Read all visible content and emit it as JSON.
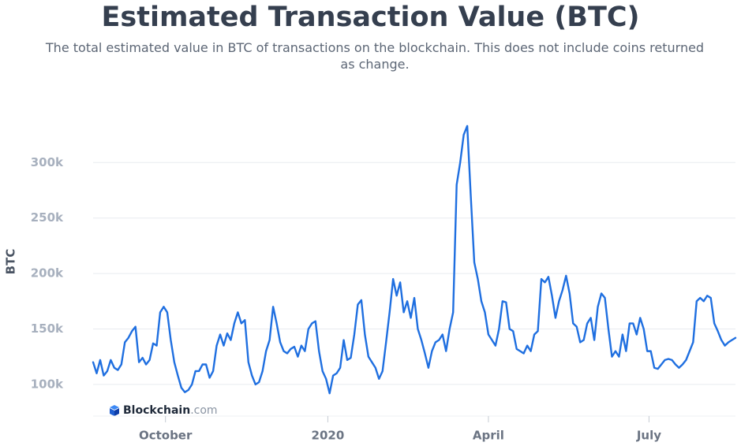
{
  "chart_data": {
    "type": "line",
    "title": "Estimated Transaction Value (BTC)",
    "subtitle": "The total estimated value in BTC of transactions on the blockchain. This does not include coins returned as change.",
    "y_label": "BTC",
    "watermark": [
      "Blockchain",
      ".com"
    ],
    "grid": true,
    "xlim": [
      0,
      364
    ],
    "xticks": [
      {
        "value": 41,
        "label": "October"
      },
      {
        "value": 133,
        "label": "2020"
      },
      {
        "value": 224,
        "label": "April"
      },
      {
        "value": 315,
        "label": "July"
      }
    ],
    "ylim": [
      80000,
      340000
    ],
    "yticks": [
      {
        "value": 100000,
        "label": "100k"
      },
      {
        "value": 150000,
        "label": "150k"
      },
      {
        "value": 200000,
        "label": "200k"
      },
      {
        "value": 250000,
        "label": "250k"
      },
      {
        "value": 300000,
        "label": "300k"
      }
    ],
    "x": [
      0,
      2,
      4,
      6,
      8,
      10,
      12,
      14,
      16,
      18,
      20,
      22,
      24,
      26,
      28,
      30,
      32,
      34,
      36,
      38,
      40,
      42,
      44,
      46,
      48,
      50,
      52,
      54,
      56,
      58,
      60,
      62,
      64,
      66,
      68,
      70,
      72,
      74,
      76,
      78,
      80,
      82,
      84,
      86,
      88,
      90,
      92,
      94,
      96,
      98,
      100,
      102,
      104,
      106,
      108,
      110,
      112,
      114,
      116,
      118,
      120,
      122,
      124,
      126,
      128,
      130,
      132,
      134,
      136,
      138,
      140,
      142,
      144,
      146,
      148,
      150,
      152,
      154,
      156,
      158,
      160,
      162,
      164,
      166,
      168,
      170,
      172,
      174,
      176,
      178,
      180,
      182,
      184,
      186,
      188,
      190,
      192,
      194,
      196,
      198,
      200,
      202,
      204,
      206,
      208,
      210,
      212,
      214,
      216,
      218,
      220,
      222,
      224,
      226,
      228,
      230,
      232,
      234,
      236,
      238,
      240,
      242,
      244,
      246,
      248,
      250,
      252,
      254,
      256,
      258,
      260,
      262,
      264,
      266,
      268,
      270,
      272,
      274,
      276,
      278,
      280,
      282,
      284,
      286,
      288,
      290,
      292,
      294,
      296,
      298,
      300,
      302,
      304,
      306,
      308,
      310,
      312,
      314,
      316,
      318,
      320,
      322,
      324,
      326,
      328,
      330,
      332,
      334,
      336,
      338,
      340,
      342,
      344,
      346,
      348,
      350,
      352,
      354,
      356,
      358,
      360,
      362,
      364
    ],
    "series": [
      {
        "name": "BTC",
        "color": "#1f6fe0",
        "values": [
          120000,
          110000,
          122000,
          108000,
          112000,
          122000,
          115000,
          113000,
          118000,
          138000,
          142000,
          148000,
          152000,
          120000,
          124000,
          118000,
          122000,
          137000,
          135000,
          165000,
          170000,
          165000,
          140000,
          120000,
          108000,
          97000,
          93000,
          95000,
          100000,
          112000,
          112000,
          118000,
          118000,
          106000,
          112000,
          135000,
          145000,
          135000,
          146000,
          140000,
          155000,
          165000,
          155000,
          158000,
          120000,
          108000,
          100000,
          102000,
          112000,
          130000,
          140000,
          170000,
          155000,
          138000,
          130000,
          128000,
          132000,
          134000,
          125000,
          135000,
          130000,
          150000,
          155000,
          157000,
          130000,
          112000,
          105000,
          92000,
          108000,
          110000,
          115000,
          140000,
          122000,
          124000,
          145000,
          172000,
          176000,
          145000,
          125000,
          120000,
          115000,
          105000,
          112000,
          138000,
          165000,
          195000,
          180000,
          192000,
          165000,
          175000,
          160000,
          178000,
          150000,
          140000,
          128000,
          115000,
          130000,
          138000,
          140000,
          145000,
          130000,
          150000,
          165000,
          280000,
          300000,
          325000,
          333000,
          270000,
          210000,
          195000,
          175000,
          165000,
          145000,
          140000,
          135000,
          150000,
          175000,
          174000,
          150000,
          148000,
          132000,
          130000,
          128000,
          135000,
          130000,
          145000,
          148000,
          195000,
          192000,
          197000,
          180000,
          160000,
          175000,
          185000,
          198000,
          182000,
          155000,
          152000,
          138000,
          140000,
          155000,
          160000,
          140000,
          170000,
          182000,
          178000,
          150000,
          125000,
          130000,
          125000,
          145000,
          130000,
          155000,
          155000,
          145000,
          160000,
          150000,
          130000,
          130000,
          115000,
          114000,
          118000,
          122000,
          123000,
          122000,
          118000,
          115000,
          118000,
          122000,
          130000,
          138000,
          175000,
          178000,
          175000,
          180000,
          178000,
          155000,
          148000,
          140000,
          135000,
          138000,
          140000,
          142000
        ]
      }
    ]
  }
}
